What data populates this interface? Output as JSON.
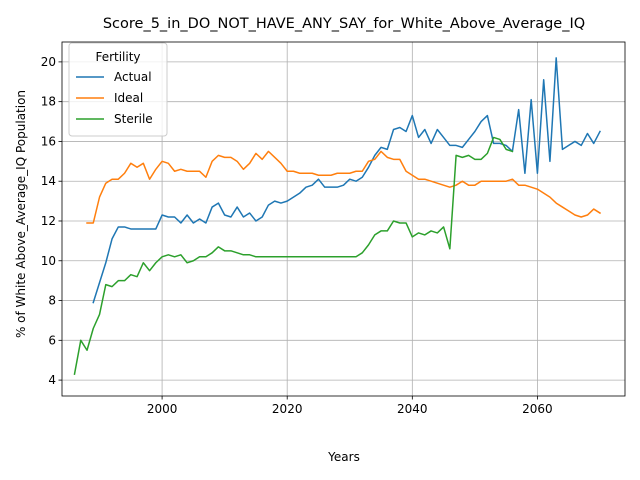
{
  "chart_data": {
    "type": "line",
    "title": "Score_5_in_DO_NOT_HAVE_ANY_SAY_for_White_Above_Average_IQ",
    "xlabel": "Years",
    "ylabel": "% of White Above_Average_IQ Population",
    "xlim": [
      1984,
      2074
    ],
    "ylim": [
      3.2,
      21
    ],
    "xticks": [
      2000,
      2020,
      2040,
      2060
    ],
    "yticks": [
      4,
      6,
      8,
      10,
      12,
      14,
      16,
      18,
      20
    ],
    "grid": true,
    "legend": {
      "title": "Fertility",
      "placement": "top-left"
    },
    "series": [
      {
        "name": "Actual",
        "color": "#1f77b4",
        "x": [
          1989,
          1990,
          1991,
          1992,
          1993,
          1994,
          1995,
          1996,
          1997,
          1998,
          1999,
          2000,
          2001,
          2002,
          2003,
          2004,
          2005,
          2006,
          2007,
          2008,
          2009,
          2010,
          2011,
          2012,
          2013,
          2014,
          2015,
          2016,
          2017,
          2018,
          2019,
          2020,
          2021,
          2022,
          2023,
          2024,
          2025,
          2026,
          2027,
          2028,
          2029,
          2030,
          2031,
          2032,
          2033,
          2034,
          2035,
          2036,
          2037,
          2038,
          2039,
          2040,
          2041,
          2042,
          2043,
          2044,
          2045,
          2046,
          2047,
          2048,
          2049,
          2050,
          2051,
          2052,
          2053,
          2054,
          2055,
          2056,
          2057,
          2058,
          2059,
          2060,
          2061,
          2062,
          2063,
          2064,
          2065,
          2066,
          2067,
          2068,
          2069,
          2070
        ],
        "values": [
          7.9,
          8.9,
          9.9,
          11.1,
          11.7,
          11.7,
          11.6,
          11.6,
          11.6,
          11.6,
          11.6,
          12.3,
          12.2,
          12.2,
          11.9,
          12.3,
          11.9,
          12.1,
          11.9,
          12.7,
          12.9,
          12.3,
          12.2,
          12.7,
          12.2,
          12.4,
          12.0,
          12.2,
          12.8,
          13.0,
          12.9,
          13.0,
          13.2,
          13.4,
          13.7,
          13.8,
          14.1,
          13.7,
          13.7,
          13.7,
          13.8,
          14.1,
          14.0,
          14.2,
          14.7,
          15.3,
          15.7,
          15.6,
          16.6,
          16.7,
          16.5,
          17.3,
          16.2,
          16.6,
          15.9,
          16.6,
          16.2,
          15.8,
          15.8,
          15.7,
          16.1,
          16.5,
          17.0,
          17.3,
          15.9,
          15.9,
          15.8,
          15.5,
          17.6,
          14.4,
          18.1,
          14.4,
          19.1,
          15.0,
          20.2,
          15.6,
          15.8,
          16.0,
          15.8,
          16.4,
          15.9,
          16.5
        ]
      },
      {
        "name": "Ideal",
        "color": "#ff7f0e",
        "x": [
          1988,
          1989,
          1990,
          1991,
          1992,
          1993,
          1994,
          1995,
          1996,
          1997,
          1998,
          1999,
          2000,
          2001,
          2002,
          2003,
          2004,
          2005,
          2006,
          2007,
          2008,
          2009,
          2010,
          2011,
          2012,
          2013,
          2014,
          2015,
          2016,
          2017,
          2018,
          2019,
          2020,
          2021,
          2022,
          2023,
          2024,
          2025,
          2026,
          2027,
          2028,
          2029,
          2030,
          2031,
          2032,
          2033,
          2034,
          2035,
          2036,
          2037,
          2038,
          2039,
          2040,
          2041,
          2042,
          2043,
          2044,
          2045,
          2046,
          2047,
          2048,
          2049,
          2050,
          2051,
          2052,
          2053,
          2054,
          2055,
          2056,
          2057,
          2058,
          2059,
          2060,
          2061,
          2062,
          2063,
          2064,
          2065,
          2066,
          2067,
          2068,
          2069,
          2070
        ],
        "values": [
          11.9,
          11.9,
          13.2,
          13.9,
          14.1,
          14.1,
          14.4,
          14.9,
          14.7,
          14.9,
          14.1,
          14.6,
          15.0,
          14.9,
          14.5,
          14.6,
          14.5,
          14.5,
          14.5,
          14.2,
          15.0,
          15.3,
          15.2,
          15.2,
          15.0,
          14.6,
          14.9,
          15.4,
          15.1,
          15.5,
          15.2,
          14.9,
          14.5,
          14.5,
          14.4,
          14.4,
          14.4,
          14.3,
          14.3,
          14.3,
          14.4,
          14.4,
          14.4,
          14.5,
          14.5,
          15.0,
          15.1,
          15.5,
          15.2,
          15.1,
          15.1,
          14.5,
          14.3,
          14.1,
          14.1,
          14.0,
          13.9,
          13.8,
          13.7,
          13.8,
          14.0,
          13.8,
          13.8,
          14.0,
          14.0,
          14.0,
          14.0,
          14.0,
          14.1,
          13.8,
          13.8,
          13.7,
          13.6,
          13.4,
          13.2,
          12.9,
          12.7,
          12.5,
          12.3,
          12.2,
          12.3,
          12.6,
          12.4
        ]
      },
      {
        "name": "Sterile",
        "color": "#2ca02c",
        "x": [
          1986,
          1987,
          1988,
          1989,
          1990,
          1991,
          1992,
          1993,
          1994,
          1995,
          1996,
          1997,
          1998,
          1999,
          2000,
          2001,
          2002,
          2003,
          2004,
          2005,
          2006,
          2007,
          2008,
          2009,
          2010,
          2011,
          2012,
          2013,
          2014,
          2015,
          2016,
          2017,
          2018,
          2019,
          2020,
          2021,
          2022,
          2023,
          2024,
          2025,
          2026,
          2027,
          2028,
          2029,
          2030,
          2031,
          2032,
          2033,
          2034,
          2035,
          2036,
          2037,
          2038,
          2039,
          2040,
          2041,
          2042,
          2043,
          2044,
          2045,
          2046,
          2047,
          2048,
          2049,
          2050,
          2051,
          2052,
          2053,
          2054,
          2055,
          2056
        ],
        "values": [
          4.3,
          6.0,
          5.5,
          6.6,
          7.3,
          8.8,
          8.7,
          9.0,
          9.0,
          9.3,
          9.2,
          9.9,
          9.5,
          9.9,
          10.2,
          10.3,
          10.2,
          10.3,
          9.9,
          10.0,
          10.2,
          10.2,
          10.4,
          10.7,
          10.5,
          10.5,
          10.4,
          10.3,
          10.3,
          10.2,
          10.2,
          10.2,
          10.2,
          10.2,
          10.2,
          10.2,
          10.2,
          10.2,
          10.2,
          10.2,
          10.2,
          10.2,
          10.2,
          10.2,
          10.2,
          10.2,
          10.4,
          10.8,
          11.3,
          11.5,
          11.5,
          12.0,
          11.9,
          11.9,
          11.2,
          11.4,
          11.3,
          11.5,
          11.4,
          11.7,
          10.6,
          15.3,
          15.2,
          15.3,
          15.1,
          15.1,
          15.4,
          16.2,
          16.1,
          15.6,
          15.5
        ]
      }
    ]
  }
}
